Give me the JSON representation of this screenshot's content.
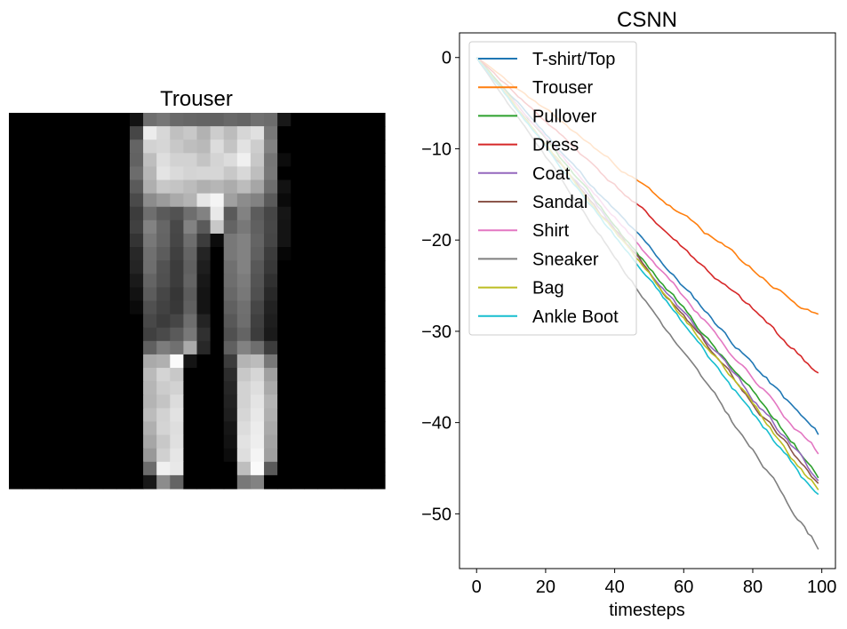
{
  "chart_data": [
    {
      "type": "heatmap",
      "title": "Trouser",
      "colormap": "gray",
      "rows": 28,
      "cols": 28,
      "pixels": [
        [
          0,
          0,
          0,
          0,
          0,
          0,
          0,
          0,
          0,
          18,
          110,
          118,
          105,
          102,
          100,
          98,
          104,
          100,
          112,
          108,
          24,
          0,
          0,
          0,
          0,
          0,
          0,
          0
        ],
        [
          0,
          0,
          0,
          0,
          0,
          0,
          0,
          0,
          0,
          70,
          236,
          215,
          192,
          200,
          178,
          205,
          188,
          214,
          224,
          120,
          0,
          0,
          0,
          0,
          0,
          0,
          0,
          0
        ],
        [
          0,
          0,
          0,
          0,
          0,
          0,
          0,
          0,
          0,
          100,
          210,
          214,
          200,
          190,
          185,
          220,
          196,
          226,
          205,
          130,
          0,
          0,
          0,
          0,
          0,
          0,
          0,
          0
        ],
        [
          0,
          0,
          0,
          0,
          0,
          0,
          0,
          0,
          0,
          98,
          190,
          222,
          210,
          210,
          196,
          212,
          220,
          240,
          200,
          118,
          12,
          0,
          0,
          0,
          0,
          0,
          0,
          0
        ],
        [
          0,
          0,
          0,
          0,
          0,
          0,
          0,
          0,
          0,
          108,
          182,
          228,
          218,
          212,
          214,
          214,
          200,
          216,
          190,
          120,
          0,
          0,
          0,
          0,
          0,
          0,
          0,
          0
        ],
        [
          0,
          0,
          0,
          0,
          0,
          0,
          0,
          0,
          0,
          90,
          175,
          200,
          196,
          188,
          176,
          182,
          172,
          188,
          166,
          110,
          18,
          0,
          0,
          0,
          0,
          0,
          0,
          0
        ],
        [
          0,
          0,
          0,
          0,
          0,
          0,
          0,
          0,
          0,
          74,
          140,
          155,
          170,
          180,
          230,
          244,
          160,
          140,
          130,
          90,
          10,
          0,
          0,
          0,
          0,
          0,
          0,
          0
        ],
        [
          0,
          0,
          0,
          0,
          0,
          0,
          0,
          0,
          0,
          60,
          110,
          90,
          82,
          110,
          130,
          232,
          90,
          130,
          92,
          70,
          22,
          0,
          0,
          0,
          0,
          0,
          0,
          0
        ],
        [
          0,
          0,
          0,
          0,
          0,
          0,
          0,
          0,
          0,
          64,
          130,
          102,
          72,
          130,
          90,
          200,
          100,
          120,
          96,
          72,
          20,
          0,
          0,
          0,
          0,
          0,
          0,
          0
        ],
        [
          0,
          0,
          0,
          0,
          0,
          0,
          0,
          0,
          0,
          52,
          120,
          100,
          70,
          110,
          60,
          12,
          120,
          130,
          100,
          70,
          20,
          0,
          0,
          0,
          0,
          0,
          0,
          0
        ],
        [
          0,
          0,
          0,
          0,
          0,
          0,
          0,
          0,
          0,
          40,
          112,
          92,
          64,
          100,
          36,
          0,
          120,
          130,
          96,
          60,
          6,
          0,
          0,
          0,
          0,
          0,
          0,
          0
        ],
        [
          0,
          0,
          0,
          0,
          0,
          0,
          0,
          0,
          0,
          36,
          110,
          82,
          60,
          96,
          30,
          0,
          112,
          130,
          88,
          56,
          0,
          0,
          0,
          0,
          0,
          0,
          0,
          0
        ],
        [
          0,
          0,
          0,
          0,
          0,
          0,
          0,
          0,
          0,
          26,
          100,
          80,
          60,
          100,
          24,
          0,
          110,
          124,
          84,
          48,
          0,
          0,
          0,
          0,
          0,
          0,
          0,
          0
        ],
        [
          0,
          0,
          0,
          0,
          0,
          0,
          0,
          0,
          0,
          18,
          92,
          70,
          54,
          92,
          20,
          0,
          104,
          120,
          80,
          40,
          0,
          0,
          0,
          0,
          0,
          0,
          0,
          0
        ],
        [
          0,
          0,
          0,
          0,
          0,
          0,
          0,
          0,
          0,
          10,
          80,
          66,
          56,
          96,
          20,
          0,
          96,
          112,
          70,
          34,
          0,
          0,
          0,
          0,
          0,
          0,
          0,
          0
        ],
        [
          0,
          0,
          0,
          0,
          0,
          0,
          0,
          0,
          0,
          0,
          72,
          60,
          70,
          110,
          36,
          0,
          88,
          110,
          64,
          30,
          0,
          0,
          0,
          0,
          0,
          0,
          0,
          0
        ],
        [
          0,
          0,
          0,
          0,
          0,
          0,
          0,
          0,
          0,
          0,
          64,
          74,
          90,
          120,
          48,
          0,
          80,
          100,
          60,
          26,
          0,
          0,
          0,
          0,
          0,
          0,
          0,
          0
        ],
        [
          0,
          0,
          0,
          0,
          0,
          0,
          0,
          0,
          0,
          0,
          96,
          124,
          112,
          170,
          40,
          0,
          96,
          130,
          110,
          60,
          0,
          0,
          0,
          0,
          0,
          0,
          0,
          0
        ],
        [
          0,
          0,
          0,
          0,
          0,
          0,
          0,
          0,
          0,
          0,
          170,
          176,
          250,
          20,
          0,
          0,
          60,
          180,
          188,
          120,
          0,
          0,
          0,
          0,
          0,
          0,
          0,
          0
        ],
        [
          0,
          0,
          0,
          0,
          0,
          0,
          0,
          0,
          0,
          0,
          186,
          212,
          200,
          0,
          0,
          0,
          44,
          200,
          214,
          160,
          0,
          0,
          0,
          0,
          0,
          0,
          0,
          0
        ],
        [
          0,
          0,
          0,
          0,
          0,
          0,
          0,
          0,
          0,
          0,
          182,
          204,
          210,
          0,
          0,
          0,
          38,
          210,
          222,
          170,
          0,
          0,
          0,
          0,
          0,
          0,
          0,
          0
        ],
        [
          0,
          0,
          0,
          0,
          0,
          0,
          0,
          0,
          0,
          0,
          180,
          196,
          220,
          0,
          0,
          0,
          34,
          210,
          228,
          180,
          0,
          0,
          0,
          0,
          0,
          0,
          0,
          0
        ],
        [
          0,
          0,
          0,
          0,
          0,
          0,
          0,
          0,
          0,
          0,
          188,
          210,
          226,
          0,
          0,
          0,
          30,
          214,
          232,
          176,
          0,
          0,
          0,
          0,
          0,
          0,
          0,
          0
        ],
        [
          0,
          0,
          0,
          0,
          0,
          0,
          0,
          0,
          0,
          0,
          176,
          212,
          222,
          0,
          0,
          0,
          22,
          220,
          236,
          170,
          0,
          0,
          0,
          0,
          0,
          0,
          0,
          0
        ],
        [
          0,
          0,
          0,
          0,
          0,
          0,
          0,
          0,
          0,
          0,
          166,
          200,
          224,
          0,
          0,
          0,
          18,
          226,
          238,
          164,
          0,
          0,
          0,
          0,
          0,
          0,
          0,
          0
        ],
        [
          0,
          0,
          0,
          0,
          0,
          0,
          0,
          0,
          0,
          0,
          152,
          208,
          230,
          0,
          0,
          0,
          12,
          222,
          244,
          160,
          0,
          0,
          0,
          0,
          0,
          0,
          0,
          0
        ],
        [
          0,
          0,
          0,
          0,
          0,
          0,
          0,
          0,
          0,
          0,
          108,
          240,
          232,
          0,
          0,
          0,
          0,
          190,
          250,
          90,
          0,
          0,
          0,
          0,
          0,
          0,
          0,
          0
        ],
        [
          0,
          0,
          0,
          0,
          0,
          0,
          0,
          0,
          0,
          0,
          24,
          140,
          100,
          0,
          0,
          0,
          0,
          120,
          130,
          0,
          0,
          0,
          0,
          0,
          0,
          0,
          0,
          0
        ]
      ]
    },
    {
      "type": "line",
      "title": "CSNN",
      "xlabel": "timesteps",
      "ylabel": "",
      "xlim": [
        -4.95,
        103.95
      ],
      "ylim": [
        -56,
        2.7
      ],
      "xticks": [
        0,
        20,
        40,
        60,
        80,
        100
      ],
      "yticks": [
        0,
        -10,
        -20,
        -30,
        -40,
        -50
      ],
      "tick_labels_x": [
        "0",
        "20",
        "40",
        "60",
        "80",
        "100"
      ],
      "tick_labels_y": [
        "0",
        "−10",
        "−20",
        "−30",
        "−40",
        "−50"
      ],
      "grid": false,
      "legend": "upper-left",
      "n_timesteps": 100,
      "series": [
        {
          "name": "T-shirt/Top",
          "color": "#1f77b4",
          "final": -41.5,
          "curve": 1.0,
          "seed": 11
        },
        {
          "name": "Trouser",
          "color": "#ff7f0e",
          "final": -28.8,
          "curve": 1.0,
          "seed": 23
        },
        {
          "name": "Pullover",
          "color": "#2ca02c",
          "final": -45.5,
          "curve": 1.0,
          "seed": 37
        },
        {
          "name": "Dress",
          "color": "#d62728",
          "final": -34.5,
          "curve": 1.0,
          "seed": 41
        },
        {
          "name": "Coat",
          "color": "#9467bd",
          "final": -46.3,
          "curve": 1.0,
          "seed": 53
        },
        {
          "name": "Sandal",
          "color": "#8c564b",
          "final": -46.8,
          "curve": 1.0,
          "seed": 67
        },
        {
          "name": "Shirt",
          "color": "#e377c2",
          "final": -43.3,
          "curve": 1.0,
          "seed": 71
        },
        {
          "name": "Sneaker",
          "color": "#7f7f7f",
          "final": -53.5,
          "curve": 1.0,
          "seed": 83
        },
        {
          "name": "Bag",
          "color": "#bcbd22",
          "final": -47.0,
          "curve": 1.0,
          "seed": 97
        },
        {
          "name": "Ankle Boot",
          "color": "#17becf",
          "final": -48.2,
          "curve": 1.0,
          "seed": 101
        }
      ]
    }
  ]
}
